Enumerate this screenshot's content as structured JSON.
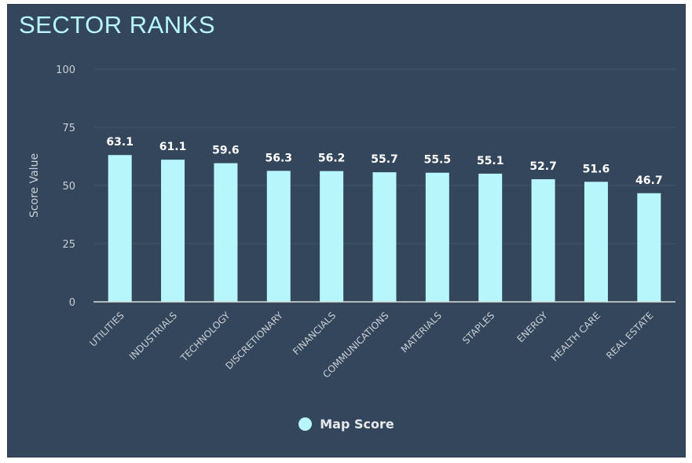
{
  "title": "SECTOR RANKS",
  "colors": {
    "panel_bg": "#34465b",
    "bar": "#b7f6fb",
    "title": "#b7f6fb",
    "grid": "#44576c",
    "axis_text": "#c9cfd6",
    "data_label": "#ffffff",
    "baseline": "#d7dde3"
  },
  "chart_data": {
    "type": "bar",
    "title": "SECTOR RANKS",
    "xlabel": "",
    "ylabel": "Score Value",
    "ylim": [
      0,
      100
    ],
    "yticks": [
      0,
      25,
      50,
      75,
      100
    ],
    "grid": true,
    "legend_position": "bottom-center",
    "categories": [
      "UTILITIES",
      "INDUSTRIALS",
      "TECHNOLOGY",
      "DISCRETIONARY",
      "FINANCIALS",
      "COMMUNICATIONS",
      "MATERIALS",
      "STAPLES",
      "ENERGY",
      "HEALTH CARE",
      "REAL ESTATE"
    ],
    "series": [
      {
        "name": "Map Score",
        "values": [
          63.1,
          61.1,
          59.6,
          56.3,
          56.2,
          55.7,
          55.5,
          55.1,
          52.7,
          51.6,
          46.7
        ],
        "labels": [
          "63.1",
          "61.1",
          "59.6",
          "56.3",
          "56.2",
          "55.7",
          "55.5",
          "55.1",
          "52.7",
          "51.6",
          "46.7"
        ]
      }
    ]
  }
}
